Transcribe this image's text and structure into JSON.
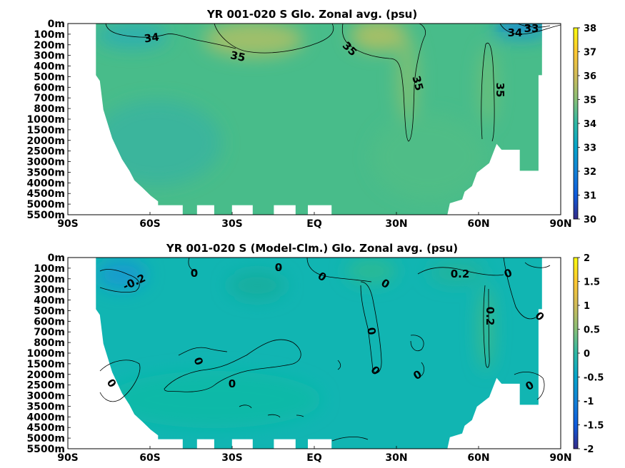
{
  "chart_data": [
    {
      "type": "heatmap",
      "title": "YR 001-020 S Glo. Zonal avg. (psu)",
      "x_ticks": [
        "90S",
        "60S",
        "30S",
        "EQ",
        "30N",
        "60N",
        "90N"
      ],
      "y_ticks": [
        "0m",
        "100m",
        "200m",
        "300m",
        "400m",
        "500m",
        "600m",
        "700m",
        "800m",
        "1000m",
        "1500m",
        "2000m",
        "2500m",
        "3000m",
        "3500m",
        "4000m",
        "4500m",
        "5000m",
        "5500m"
      ],
      "colorbar": {
        "ticks": [
          "30",
          "31",
          "32",
          "33",
          "34",
          "35",
          "36",
          "37",
          "38"
        ],
        "range": [
          30,
          38
        ]
      },
      "contour_labels": [
        "34",
        "35",
        "35",
        "35",
        "35",
        "34",
        "33"
      ],
      "colormap": "parula"
    },
    {
      "type": "heatmap",
      "title": "YR 001-020 S (Model-Clm.) Glo. Zonal avg. (psu)",
      "x_ticks": [
        "90S",
        "60S",
        "30S",
        "EQ",
        "30N",
        "60N",
        "90N"
      ],
      "y_ticks": [
        "0m",
        "100m",
        "200m",
        "300m",
        "400m",
        "500m",
        "600m",
        "700m",
        "800m",
        "1000m",
        "1500m",
        "2000m",
        "2500m",
        "3000m",
        "3500m",
        "4000m",
        "4500m",
        "5000m",
        "5500m"
      ],
      "colorbar": {
        "ticks": [
          "-2",
          "-1.5",
          "-1",
          "-0.5",
          "0",
          "0.5",
          "1",
          "1.5",
          "2"
        ],
        "range": [
          -2,
          2
        ]
      },
      "contour_labels": [
        "-0.2",
        "0",
        "0",
        "0",
        "0",
        "0",
        "0",
        "0",
        "0",
        "0",
        "0.2",
        "0.2",
        "0",
        "0",
        "0",
        "0"
      ],
      "colormap": "parula"
    }
  ]
}
